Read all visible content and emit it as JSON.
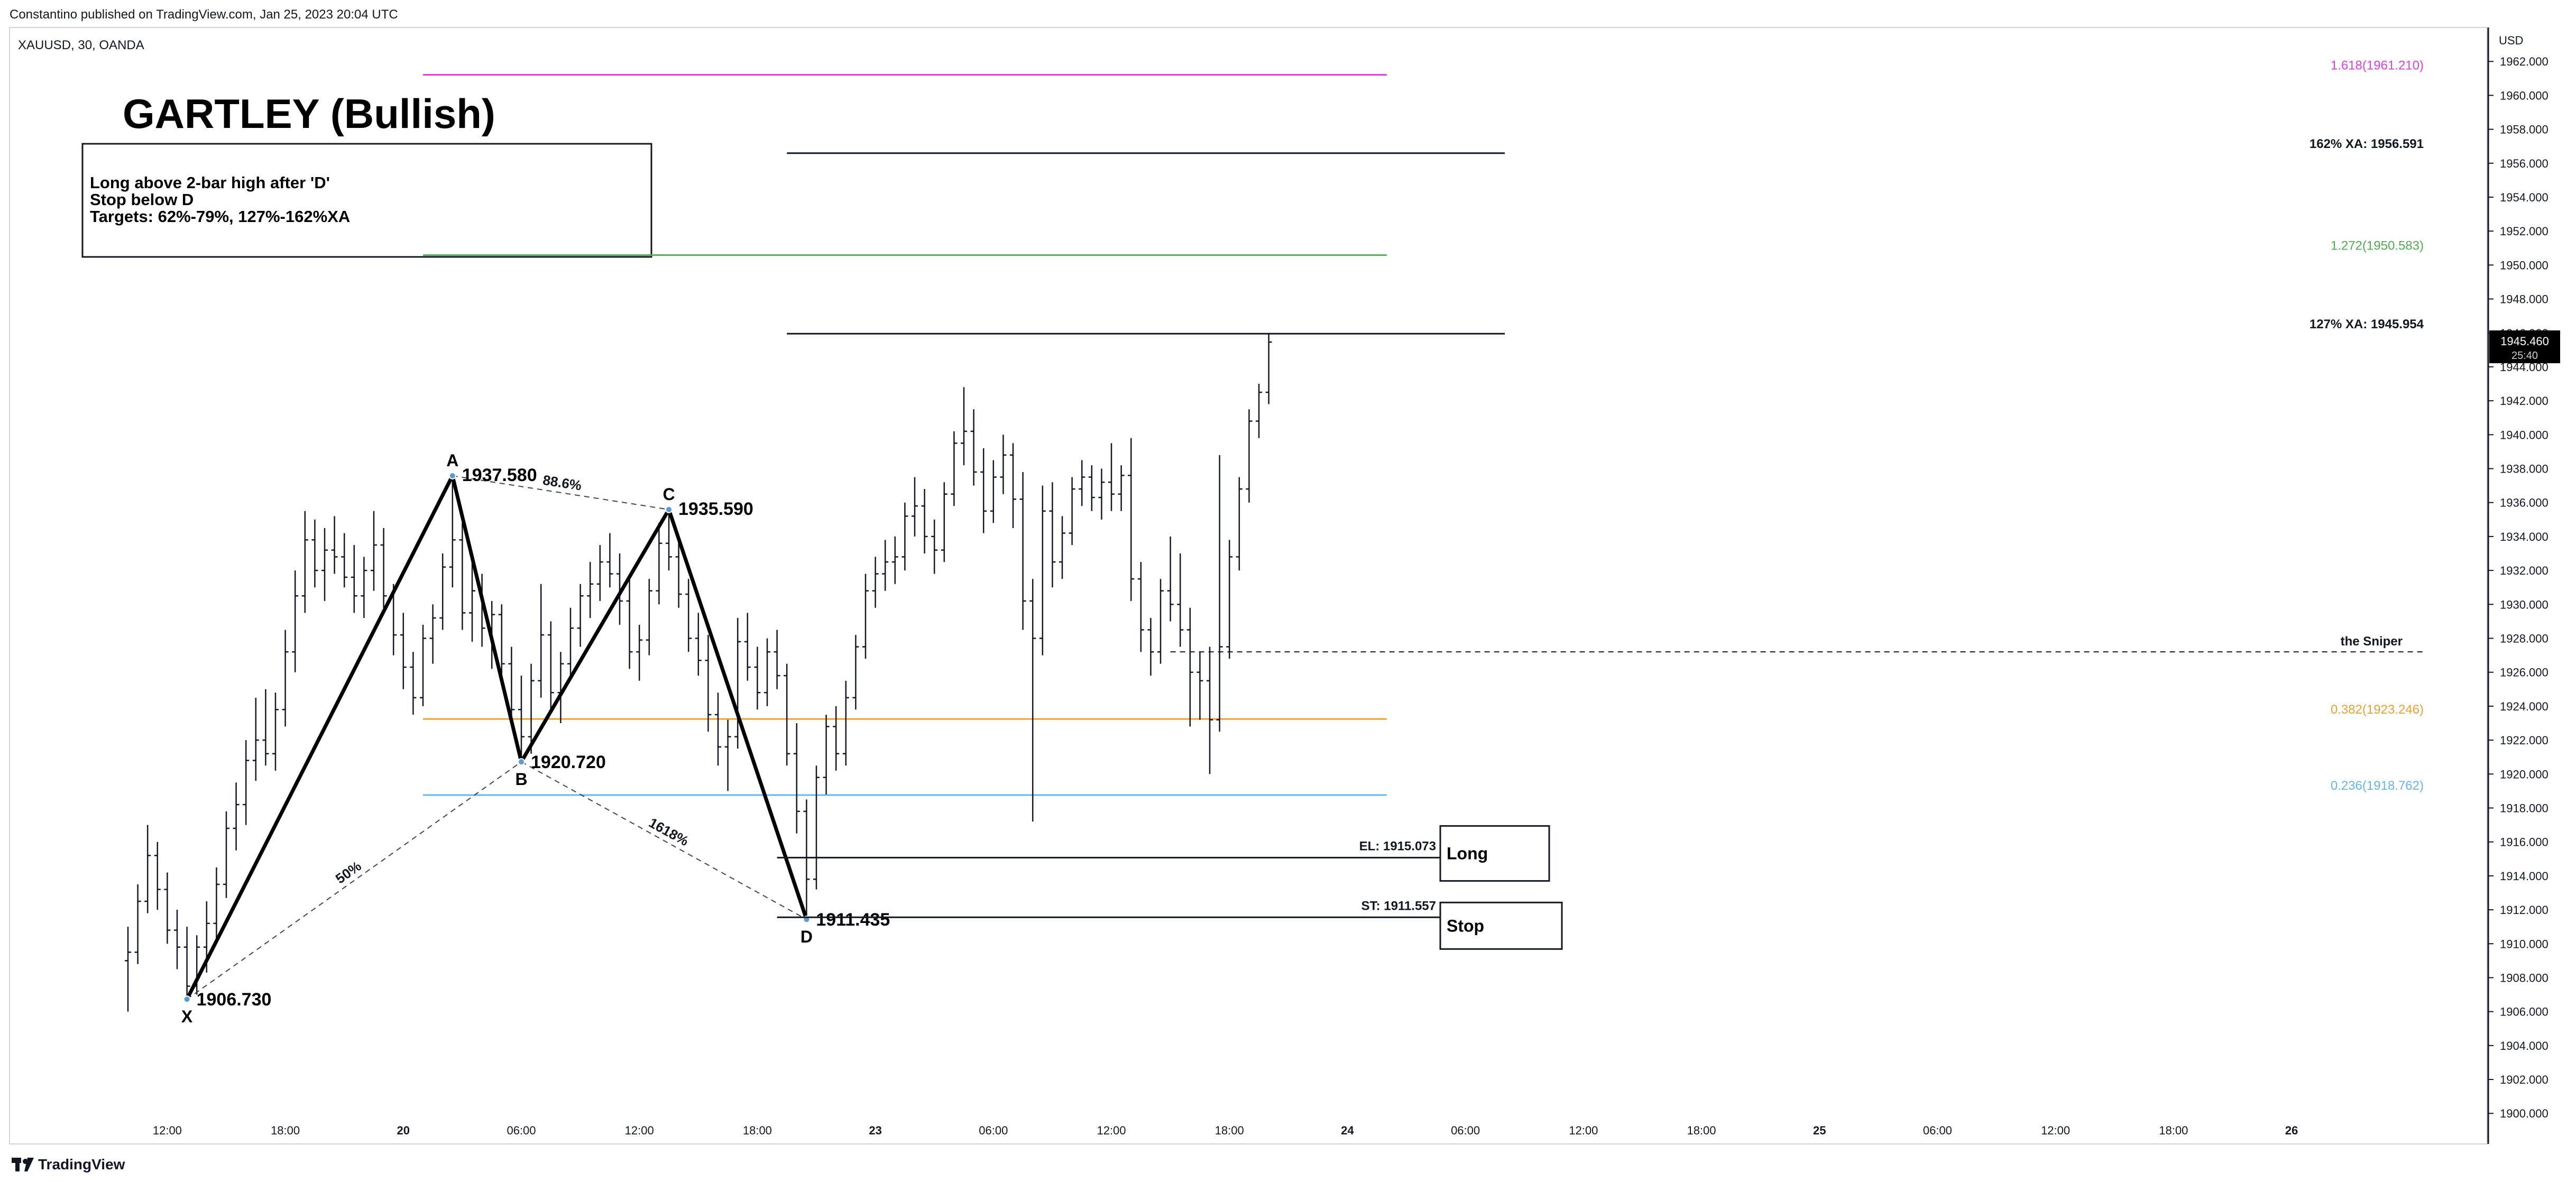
{
  "header": {
    "published": "Constantino published on TradingView.com, Jan 25, 2023 20:04 UTC",
    "symbol": "XAUUSD, 30, OANDA"
  },
  "footer": {
    "brand": "TradingView"
  },
  "chart_data": {
    "type": "bar",
    "title": "GARTLEY (Bullish)",
    "currency": "USD",
    "ylim": [
      1898.2,
      1964.0
    ],
    "y_ticks": [
      1900,
      1902,
      1904,
      1906,
      1908,
      1910,
      1912,
      1914,
      1916,
      1918,
      1920,
      1922,
      1924,
      1926,
      1928,
      1930,
      1932,
      1934,
      1936,
      1938,
      1940,
      1942,
      1944,
      1946,
      1948,
      1950,
      1952,
      1954,
      1956,
      1958,
      1960,
      1962
    ],
    "y_tick_labels": [
      "1900.000",
      "1902.000",
      "1904.000",
      "1906.000",
      "1908.000",
      "1910.000",
      "1912.000",
      "1914.000",
      "1916.000",
      "1918.000",
      "1920.000",
      "1922.000",
      "1924.000",
      "1926.000",
      "1928.000",
      "1930.000",
      "1932.000",
      "1934.000",
      "1936.000",
      "1938.000",
      "1940.000",
      "1942.000",
      "1944.000",
      "1946.000",
      "1948.000",
      "1950.000",
      "1952.000",
      "1954.000",
      "1956.000",
      "1958.000",
      "1960.000",
      "1962.000"
    ],
    "x_ticks": [
      {
        "label": "12:00",
        "t": 4
      },
      {
        "label": "18:00",
        "t": 16
      },
      {
        "label": "20",
        "t": 28
      },
      {
        "label": "06:00",
        "t": 40
      },
      {
        "label": "12:00",
        "t": 52
      },
      {
        "label": "18:00",
        "t": 64
      },
      {
        "label": "23",
        "t": 76
      },
      {
        "label": "06:00",
        "t": 88
      },
      {
        "label": "12:00",
        "t": 100
      },
      {
        "label": "18:00",
        "t": 112
      },
      {
        "label": "24",
        "t": 124
      },
      {
        "label": "06:00",
        "t": 136
      },
      {
        "label": "12:00",
        "t": 148
      },
      {
        "label": "18:00",
        "t": 160
      },
      {
        "label": "25",
        "t": 172
      },
      {
        "label": "06:00",
        "t": 184
      },
      {
        "label": "12:00",
        "t": 196
      },
      {
        "label": "18:00",
        "t": 208
      },
      {
        "label": "26",
        "t": 220
      }
    ],
    "last_price": {
      "value": 1945.46,
      "label": "1945.460",
      "countdown": "25:40"
    },
    "ohlc": [
      [
        1909.0,
        1911.0,
        1906.0,
        1909.5
      ],
      [
        1909.5,
        1913.5,
        1908.8,
        1912.5
      ],
      [
        1912.5,
        1917.0,
        1911.8,
        1915.2
      ],
      [
        1915.2,
        1916.0,
        1912.0,
        1913.2
      ],
      [
        1913.2,
        1914.2,
        1910.0,
        1910.8
      ],
      [
        1910.8,
        1912.0,
        1908.5,
        1909.8
      ],
      [
        1909.8,
        1911.0,
        1906.73,
        1907.5
      ],
      [
        1907.5,
        1910.5,
        1907.0,
        1909.8
      ],
      [
        1909.8,
        1912.5,
        1908.3,
        1911.2
      ],
      [
        1911.2,
        1914.5,
        1910.2,
        1913.5
      ],
      [
        1913.5,
        1917.8,
        1912.7,
        1916.8
      ],
      [
        1916.8,
        1919.5,
        1915.5,
        1918.2
      ],
      [
        1918.2,
        1922.0,
        1917.0,
        1920.8
      ],
      [
        1920.8,
        1924.5,
        1919.6,
        1922.0
      ],
      [
        1922.0,
        1925.0,
        1920.5,
        1921.2
      ],
      [
        1921.2,
        1924.8,
        1920.2,
        1923.8
      ],
      [
        1923.8,
        1928.5,
        1922.8,
        1927.2
      ],
      [
        1927.2,
        1932.0,
        1926.0,
        1930.5
      ],
      [
        1930.5,
        1935.5,
        1929.5,
        1933.8
      ],
      [
        1933.8,
        1935.0,
        1931.0,
        1932.0
      ],
      [
        1932.0,
        1934.5,
        1930.2,
        1933.2
      ],
      [
        1933.2,
        1935.2,
        1931.8,
        1932.8
      ],
      [
        1932.8,
        1934.2,
        1931.0,
        1931.6
      ],
      [
        1931.6,
        1933.5,
        1929.5,
        1930.5
      ],
      [
        1930.5,
        1932.8,
        1929.2,
        1932.0
      ],
      [
        1932.0,
        1935.5,
        1930.8,
        1933.5
      ],
      [
        1933.5,
        1934.5,
        1929.8,
        1930.5
      ],
      [
        1930.5,
        1931.2,
        1927.0,
        1928.2
      ],
      [
        1928.2,
        1929.5,
        1925.0,
        1926.3
      ],
      [
        1926.3,
        1927.2,
        1923.5,
        1924.5
      ],
      [
        1924.5,
        1928.8,
        1924.0,
        1928.0
      ],
      [
        1928.0,
        1930.0,
        1926.5,
        1929.2
      ],
      [
        1929.2,
        1933.0,
        1928.5,
        1932.2
      ],
      [
        1932.2,
        1937.58,
        1931.0,
        1933.8
      ],
      [
        1933.8,
        1934.8,
        1928.5,
        1929.5
      ],
      [
        1929.5,
        1932.8,
        1927.8,
        1930.8
      ],
      [
        1930.8,
        1931.8,
        1927.5,
        1928.6
      ],
      [
        1928.6,
        1930.2,
        1926.2,
        1929.4
      ],
      [
        1929.4,
        1930.0,
        1925.5,
        1926.5
      ],
      [
        1926.5,
        1927.5,
        1922.8,
        1923.8
      ],
      [
        1923.8,
        1925.8,
        1920.72,
        1922.2
      ],
      [
        1922.2,
        1926.5,
        1921.2,
        1925.5
      ],
      [
        1925.5,
        1931.2,
        1924.5,
        1928.2
      ],
      [
        1928.2,
        1929.0,
        1923.8,
        1924.8
      ],
      [
        1924.8,
        1927.2,
        1923.0,
        1926.5
      ],
      [
        1926.5,
        1929.8,
        1925.8,
        1928.6
      ],
      [
        1928.6,
        1931.2,
        1927.5,
        1930.5
      ],
      [
        1930.5,
        1932.5,
        1929.2,
        1931.2
      ],
      [
        1931.2,
        1933.5,
        1930.2,
        1932.5
      ],
      [
        1932.5,
        1934.2,
        1931.0,
        1931.8
      ],
      [
        1931.8,
        1933.0,
        1928.8,
        1930.2
      ],
      [
        1930.2,
        1931.8,
        1926.2,
        1927.2
      ],
      [
        1927.2,
        1928.8,
        1925.5,
        1927.9
      ],
      [
        1927.9,
        1931.5,
        1927.0,
        1930.8
      ],
      [
        1930.8,
        1934.8,
        1930.0,
        1933.6
      ],
      [
        1933.6,
        1935.59,
        1932.0,
        1932.8
      ],
      [
        1932.8,
        1934.0,
        1929.8,
        1930.6
      ],
      [
        1930.6,
        1931.5,
        1927.2,
        1928.0
      ],
      [
        1928.0,
        1929.5,
        1925.8,
        1926.7
      ],
      [
        1926.7,
        1928.2,
        1922.5,
        1923.5
      ],
      [
        1923.5,
        1924.8,
        1920.5,
        1921.6
      ],
      [
        1921.6,
        1923.2,
        1919.0,
        1922.2
      ],
      [
        1922.2,
        1929.2,
        1921.5,
        1927.8
      ],
      [
        1927.8,
        1929.5,
        1925.5,
        1926.3
      ],
      [
        1926.3,
        1927.5,
        1923.8,
        1924.8
      ],
      [
        1924.8,
        1928.0,
        1924.0,
        1927.2
      ],
      [
        1927.2,
        1928.5,
        1925.0,
        1925.8
      ],
      [
        1925.8,
        1926.5,
        1920.5,
        1921.2
      ],
      [
        1921.2,
        1923.0,
        1916.5,
        1917.8
      ],
      [
        1917.8,
        1918.5,
        1911.435,
        1913.8
      ],
      [
        1913.8,
        1920.5,
        1913.2,
        1919.8
      ],
      [
        1919.8,
        1923.5,
        1918.8,
        1922.8
      ],
      [
        1922.8,
        1924.0,
        1920.2,
        1921.2
      ],
      [
        1921.2,
        1925.5,
        1920.5,
        1924.5
      ],
      [
        1924.5,
        1928.2,
        1923.8,
        1927.5
      ],
      [
        1927.5,
        1931.8,
        1926.8,
        1930.8
      ],
      [
        1930.8,
        1932.8,
        1929.8,
        1931.8
      ],
      [
        1931.8,
        1933.8,
        1930.8,
        1932.5
      ],
      [
        1932.5,
        1934.0,
        1931.2,
        1932.8
      ],
      [
        1932.8,
        1936.0,
        1932.0,
        1935.2
      ],
      [
        1935.2,
        1937.5,
        1934.0,
        1935.8
      ],
      [
        1935.8,
        1936.8,
        1933.0,
        1934.0
      ],
      [
        1934.0,
        1935.0,
        1931.8,
        1933.2
      ],
      [
        1933.2,
        1937.2,
        1932.5,
        1936.5
      ],
      [
        1936.5,
        1940.2,
        1935.8,
        1939.5
      ],
      [
        1939.5,
        1942.8,
        1938.2,
        1940.2
      ],
      [
        1940.2,
        1941.5,
        1937.0,
        1937.8
      ],
      [
        1937.8,
        1939.2,
        1934.2,
        1935.5
      ],
      [
        1935.5,
        1938.5,
        1934.8,
        1937.5
      ],
      [
        1937.5,
        1940.0,
        1936.5,
        1938.8
      ],
      [
        1938.8,
        1939.5,
        1934.5,
        1936.2
      ],
      [
        1936.2,
        1937.8,
        1928.5,
        1930.2
      ],
      [
        1930.2,
        1931.5,
        1917.2,
        1928.0
      ],
      [
        1928.0,
        1937.0,
        1927.0,
        1935.5
      ],
      [
        1935.5,
        1937.2,
        1931.0,
        1932.5
      ],
      [
        1932.5,
        1935.2,
        1931.5,
        1934.2
      ],
      [
        1934.2,
        1937.5,
        1933.5,
        1936.8
      ],
      [
        1936.8,
        1938.5,
        1935.8,
        1937.5
      ],
      [
        1937.5,
        1938.2,
        1935.5,
        1936.3
      ],
      [
        1936.3,
        1938.0,
        1935.0,
        1937.2
      ],
      [
        1937.2,
        1939.5,
        1935.5,
        1936.5
      ],
      [
        1936.5,
        1938.2,
        1935.5,
        1937.6
      ],
      [
        1937.6,
        1939.8,
        1930.2,
        1931.5
      ],
      [
        1931.5,
        1932.5,
        1927.2,
        1928.5
      ],
      [
        1928.5,
        1929.2,
        1925.8,
        1927.2
      ],
      [
        1927.2,
        1931.5,
        1926.5,
        1930.8
      ],
      [
        1930.8,
        1934.0,
        1929.0,
        1930.0
      ],
      [
        1930.0,
        1933.0,
        1927.5,
        1928.5
      ],
      [
        1928.5,
        1929.8,
        1922.8,
        1926.0
      ],
      [
        1926.0,
        1927.2,
        1923.2,
        1925.5
      ],
      [
        1925.5,
        1927.5,
        1920.0,
        1923.2
      ],
      [
        1923.2,
        1938.8,
        1922.5,
        1927.5
      ],
      [
        1927.5,
        1933.8,
        1926.8,
        1932.8
      ],
      [
        1932.8,
        1937.5,
        1932.0,
        1936.8
      ],
      [
        1936.8,
        1941.5,
        1936.0,
        1940.8
      ],
      [
        1940.8,
        1943.0,
        1939.8,
        1942.5
      ],
      [
        1942.5,
        1946.0,
        1941.8,
        1945.46
      ]
    ],
    "patterns": [
      {
        "kind": "line",
        "from": {
          "t": 6,
          "v": 1906.73
        },
        "to": {
          "t": 33,
          "v": 1937.58
        }
      },
      {
        "kind": "line",
        "from": {
          "t": 33,
          "v": 1937.58
        },
        "to": {
          "t": 40,
          "v": 1920.72
        }
      },
      {
        "kind": "line",
        "from": {
          "t": 40,
          "v": 1920.72
        },
        "to": {
          "t": 55,
          "v": 1935.59
        }
      },
      {
        "kind": "line",
        "from": {
          "t": 55,
          "v": 1935.59
        },
        "to": {
          "t": 69,
          "v": 1911.435
        }
      }
    ],
    "points": [
      {
        "name": "X",
        "value": 1906.73,
        "value_label": "1906.730",
        "t": 6
      },
      {
        "name": "A",
        "value": 1937.58,
        "value_label": "1937.580",
        "t": 33
      },
      {
        "name": "B",
        "value": 1920.72,
        "value_label": "1920.720",
        "t": 40
      },
      {
        "name": "C",
        "value": 1935.59,
        "value_label": "1935.590",
        "t": 55
      },
      {
        "name": "D",
        "value": 1911.435,
        "value_label": "1911.435",
        "t": 69
      }
    ],
    "ratio_labels": [
      {
        "text": "88.6%",
        "from": "A",
        "to": "C"
      },
      {
        "text": "50%",
        "from": "X",
        "to": "B"
      },
      {
        "text": "1618%",
        "from": "B",
        "to": "D"
      }
    ],
    "levels": [
      {
        "label": "1.618(1961.210)",
        "value": 1961.21,
        "color": "#e040e0",
        "x_from": 30,
        "x_to": 128
      },
      {
        "label": "162% XA: 1956.591",
        "value": 1956.591,
        "color": "#131722",
        "x_from": 67,
        "x_to": 140
      },
      {
        "label": "1.272(1950.583)",
        "value": 1950.583,
        "color": "#4caf50",
        "x_from": 30,
        "x_to": 128
      },
      {
        "label": "127% XA: 1945.954",
        "value": 1945.954,
        "color": "#131722",
        "x_from": 67,
        "x_to": 140
      },
      {
        "label": "0.382(1923.246)",
        "value": 1923.246,
        "color": "#f0a030",
        "x_from": 30,
        "x_to": 128
      },
      {
        "label": "0.236(1918.762)",
        "value": 1918.762,
        "color": "#64b5f6",
        "x_from": 30,
        "x_to": 128
      }
    ],
    "entry": {
      "label": "EL: 1915.073",
      "value": 1915.073,
      "box": "Long"
    },
    "stop": {
      "label": "ST: 1911.557",
      "value": 1911.557,
      "box": "Stop"
    },
    "sniper": {
      "label": "the Sniper",
      "value": 1927.2
    },
    "note": {
      "lines": [
        "Long above 2-bar high after 'D'",
        "Stop below D",
        "Targets: 62%-79%, 127%-162%XA"
      ]
    },
    "colors": {
      "bars": "#131722",
      "pattern": "#000000",
      "last_price_bg": "#000000"
    }
  }
}
